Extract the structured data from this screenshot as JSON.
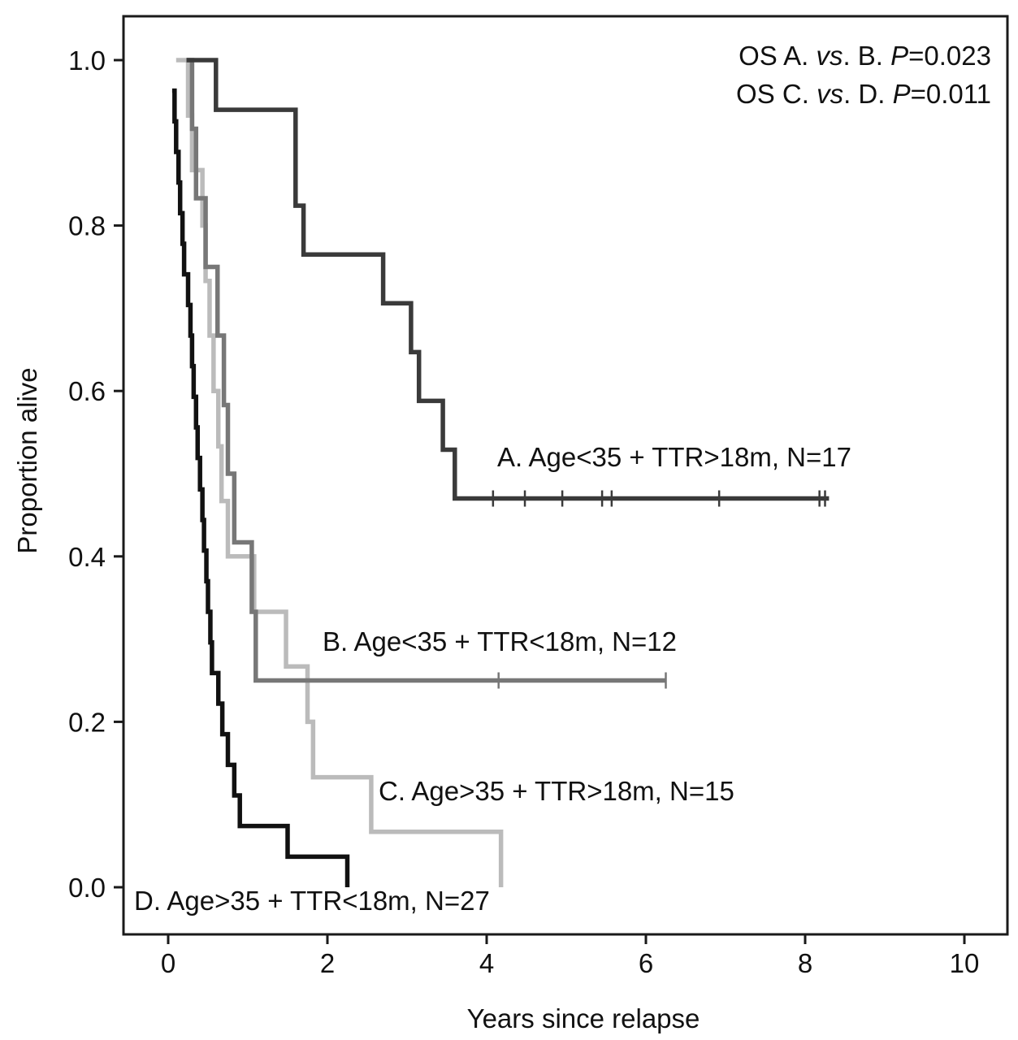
{
  "chart_data": {
    "type": "line",
    "subtype": "kaplan-meier",
    "title": "",
    "xlabel": "Years since relapse",
    "ylabel": "Proportion alive",
    "xlim": [
      -0.5,
      10.5
    ],
    "ylim": [
      -0.07,
      1.1
    ],
    "xticks": [
      0,
      2,
      4,
      6,
      8,
      10
    ],
    "yticks": [
      0.0,
      0.2,
      0.4,
      0.6,
      0.8,
      1.0
    ],
    "xtick_labels": [
      "0",
      "2",
      "4",
      "6",
      "8",
      "10"
    ],
    "ytick_labels": [
      "0.0",
      "0.2",
      "0.4",
      "0.6",
      "0.8",
      "1.0"
    ],
    "grid": false,
    "annotations": [
      {
        "text": "OS A. vs. B. P=0.023",
        "parts": [
          "OS A. ",
          "vs",
          ". B. ",
          "P",
          "=0.023"
        ]
      },
      {
        "text": "OS C. vs. D. P=0.011",
        "parts": [
          "OS C. ",
          "vs",
          ". D. ",
          "P",
          "=0.011"
        ]
      }
    ],
    "series": [
      {
        "name": "A",
        "label": "A. Age<35 + TTR>18m, N=17",
        "color": "#3a3a3a",
        "steps": [
          [
            0.23,
            1.0
          ],
          [
            0.6,
            0.94
          ],
          [
            1.6,
            0.824
          ],
          [
            1.7,
            0.765
          ],
          [
            2.7,
            0.706
          ],
          [
            3.05,
            0.647
          ],
          [
            3.15,
            0.588
          ],
          [
            3.45,
            0.529
          ],
          [
            3.6,
            0.47
          ]
        ],
        "end": 8.3,
        "censor": [
          4.08,
          4.48,
          4.95,
          5.45,
          5.57,
          6.92,
          8.18,
          8.25
        ]
      },
      {
        "name": "B",
        "label": "B. Age<35 + TTR<18m, N=12",
        "color": "#777777",
        "steps": [
          [
            0.23,
            1.0
          ],
          [
            0.3,
            0.917
          ],
          [
            0.35,
            0.833
          ],
          [
            0.47,
            0.75
          ],
          [
            0.62,
            0.667
          ],
          [
            0.7,
            0.583
          ],
          [
            0.75,
            0.5
          ],
          [
            0.83,
            0.417
          ],
          [
            1.05,
            0.333
          ],
          [
            1.1,
            0.25
          ]
        ],
        "end": 6.25,
        "censor": [
          4.15,
          6.25
        ]
      },
      {
        "name": "C",
        "label": "C. Age>35 + TTR>18m, N=15",
        "color": "#bbbbbb",
        "steps": [
          [
            0.1,
            1.0
          ],
          [
            0.25,
            0.933
          ],
          [
            0.3,
            0.867
          ],
          [
            0.43,
            0.8
          ],
          [
            0.47,
            0.733
          ],
          [
            0.52,
            0.667
          ],
          [
            0.57,
            0.6
          ],
          [
            0.63,
            0.533
          ],
          [
            0.67,
            0.467
          ],
          [
            0.75,
            0.4
          ],
          [
            1.08,
            0.333
          ],
          [
            1.48,
            0.267
          ],
          [
            1.75,
            0.2
          ],
          [
            1.82,
            0.133
          ],
          [
            2.55,
            0.067
          ],
          [
            4.18,
            0.0
          ]
        ],
        "end": 4.18,
        "censor": []
      },
      {
        "name": "D",
        "label": "D. Age>35 + TTR<18m, N=27",
        "color": "#111111",
        "steps": [
          [
            0.05,
            0.963
          ],
          [
            0.08,
            0.926
          ],
          [
            0.1,
            0.889
          ],
          [
            0.13,
            0.852
          ],
          [
            0.15,
            0.815
          ],
          [
            0.18,
            0.778
          ],
          [
            0.2,
            0.741
          ],
          [
            0.25,
            0.704
          ],
          [
            0.28,
            0.667
          ],
          [
            0.3,
            0.63
          ],
          [
            0.32,
            0.593
          ],
          [
            0.35,
            0.556
          ],
          [
            0.37,
            0.519
          ],
          [
            0.4,
            0.481
          ],
          [
            0.43,
            0.444
          ],
          [
            0.45,
            0.407
          ],
          [
            0.48,
            0.37
          ],
          [
            0.5,
            0.333
          ],
          [
            0.53,
            0.296
          ],
          [
            0.55,
            0.259
          ],
          [
            0.63,
            0.222
          ],
          [
            0.68,
            0.185
          ],
          [
            0.75,
            0.148
          ],
          [
            0.83,
            0.111
          ],
          [
            0.9,
            0.074
          ],
          [
            1.5,
            0.037
          ],
          [
            2.25,
            0.0
          ]
        ],
        "end": 2.25,
        "censor": []
      }
    ]
  }
}
